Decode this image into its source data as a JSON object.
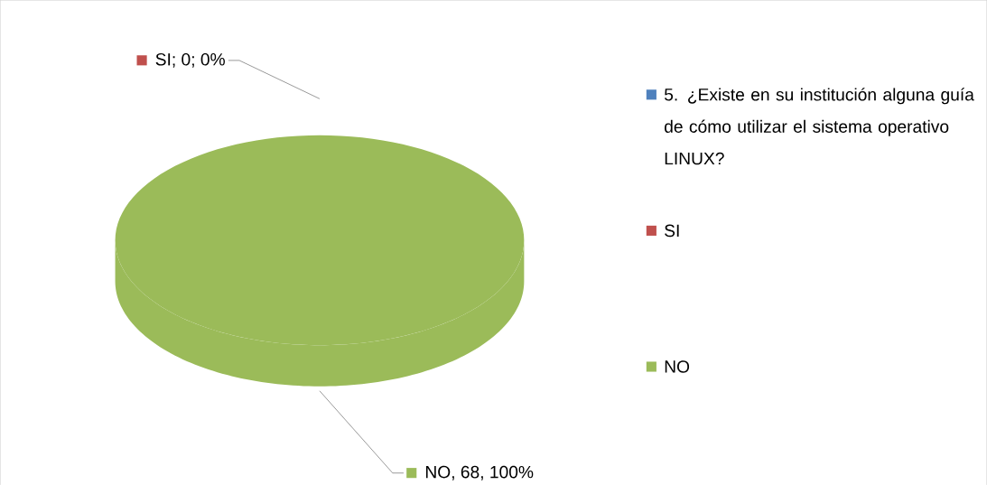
{
  "chart_data": {
    "type": "pie",
    "categories": [
      "5. ¿Existe en su institución alguna guía de cómo utilizar el sistema operativo LINUX?",
      "SI",
      "NO"
    ],
    "values": [
      null,
      0,
      68
    ],
    "colors": [
      "#4f81bd",
      "#c0504d",
      "#9bbb59"
    ],
    "value_labels": [
      null,
      "SI; 0; 0%",
      "NO, 68, 100%"
    ],
    "legend": "right"
  }
}
